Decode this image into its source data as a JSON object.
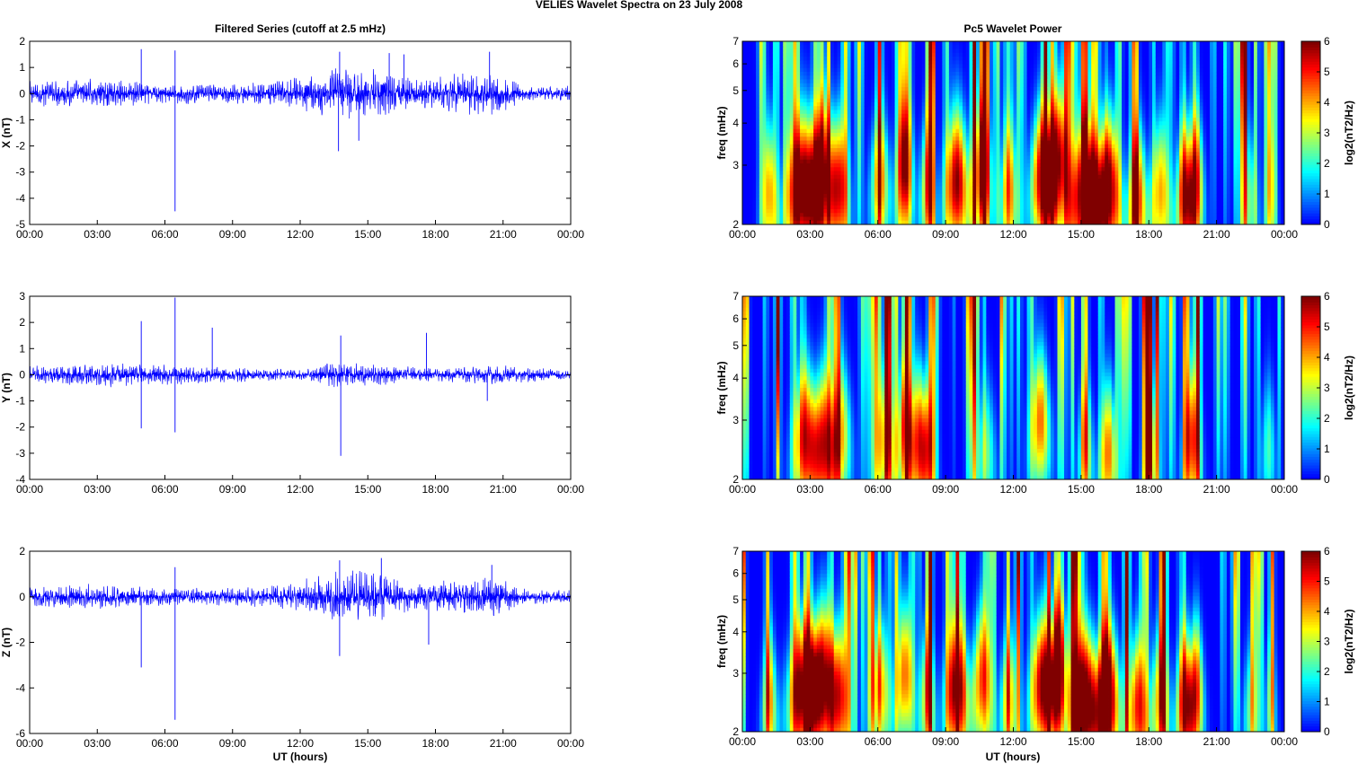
{
  "figure": {
    "title": "VELIES Wavelet Spectra on 23 July      2008",
    "left_title": "Filtered Series (cutoff at 2.5 mHz)",
    "right_title": "Pc5 Wavelet Power",
    "xlabel": "UT (hours)"
  },
  "colors": {
    "trace": "#0000ff",
    "axis": "#000000",
    "colormap": "jet",
    "background": "#00008f"
  },
  "chart_data": [
    {
      "type": "line",
      "title": "Filtered Series (cutoff at 2.5 mHz)",
      "ylabel": "X (nT)",
      "xlim": [
        0,
        24
      ],
      "ylim": [
        -5,
        2
      ],
      "x_ticks": [
        "00:00",
        "03:00",
        "06:00",
        "09:00",
        "12:00",
        "15:00",
        "18:00",
        "21:00",
        "00:00"
      ],
      "y_ticks": [
        -5,
        -4,
        -3,
        -2,
        -1,
        0,
        1,
        2
      ],
      "envelope": [
        {
          "t": 0,
          "amp": 0.5
        },
        {
          "t": 3,
          "amp": 0.6
        },
        {
          "t": 6,
          "amp": 0.4
        },
        {
          "t": 9,
          "amp": 0.4
        },
        {
          "t": 11,
          "amp": 0.5
        },
        {
          "t": 13.5,
          "amp": 1.0
        },
        {
          "t": 15.5,
          "amp": 1.0
        },
        {
          "t": 17,
          "amp": 0.6
        },
        {
          "t": 20.5,
          "amp": 0.9
        },
        {
          "t": 22,
          "amp": 0.3
        },
        {
          "t": 24,
          "amp": 0.3
        }
      ],
      "spikes": [
        {
          "t": 4.95,
          "v": 1.7
        },
        {
          "t": 6.45,
          "v": -4.5
        },
        {
          "t": 6.45,
          "v": 1.65
        },
        {
          "t": 13.7,
          "v": -2.2
        },
        {
          "t": 13.75,
          "v": 1.6
        },
        {
          "t": 15.95,
          "v": 1.55
        },
        {
          "t": 16.6,
          "v": 1.5
        },
        {
          "t": 20.4,
          "v": 1.6
        },
        {
          "t": 14.6,
          "v": -1.8
        }
      ]
    },
    {
      "type": "line",
      "ylabel": "Y (nT)",
      "xlim": [
        0,
        24
      ],
      "ylim": [
        -4,
        3
      ],
      "x_ticks": [
        "00:00",
        "03:00",
        "06:00",
        "09:00",
        "12:00",
        "15:00",
        "18:00",
        "21:00",
        "00:00"
      ],
      "y_ticks": [
        -4,
        -3,
        -2,
        -1,
        0,
        1,
        2,
        3
      ],
      "envelope": [
        {
          "t": 0,
          "amp": 0.35
        },
        {
          "t": 3,
          "amp": 0.5
        },
        {
          "t": 6,
          "amp": 0.4
        },
        {
          "t": 9,
          "amp": 0.3
        },
        {
          "t": 12,
          "amp": 0.2
        },
        {
          "t": 13.5,
          "amp": 0.5
        },
        {
          "t": 15.5,
          "amp": 0.4
        },
        {
          "t": 18,
          "amp": 0.25
        },
        {
          "t": 20.5,
          "amp": 0.4
        },
        {
          "t": 24,
          "amp": 0.2
        }
      ],
      "spikes": [
        {
          "t": 4.95,
          "v": 2.05
        },
        {
          "t": 4.95,
          "v": -2.05
        },
        {
          "t": 6.45,
          "v": 2.95
        },
        {
          "t": 6.45,
          "v": -2.2
        },
        {
          "t": 8.1,
          "v": 1.8
        },
        {
          "t": 13.8,
          "v": 1.5
        },
        {
          "t": 13.8,
          "v": -3.1
        },
        {
          "t": 17.6,
          "v": 1.6
        },
        {
          "t": 20.3,
          "v": -1.0
        }
      ]
    },
    {
      "type": "line",
      "ylabel": "Z (nT)",
      "xlabel": "UT (hours)",
      "xlim": [
        0,
        24
      ],
      "ylim": [
        -6,
        2
      ],
      "x_ticks": [
        "00:00",
        "03:00",
        "06:00",
        "09:00",
        "12:00",
        "15:00",
        "18:00",
        "21:00",
        "00:00"
      ],
      "y_ticks": [
        -6,
        -4,
        -2,
        0,
        2
      ],
      "envelope": [
        {
          "t": 0,
          "amp": 0.45
        },
        {
          "t": 3,
          "amp": 0.6
        },
        {
          "t": 6,
          "amp": 0.4
        },
        {
          "t": 9,
          "amp": 0.4
        },
        {
          "t": 11,
          "amp": 0.5
        },
        {
          "t": 13.7,
          "amp": 1.2
        },
        {
          "t": 15.5,
          "amp": 1.1
        },
        {
          "t": 17,
          "amp": 0.6
        },
        {
          "t": 20.5,
          "amp": 1.0
        },
        {
          "t": 22,
          "amp": 0.35
        },
        {
          "t": 24,
          "amp": 0.35
        }
      ],
      "spikes": [
        {
          "t": 4.95,
          "v": -3.1
        },
        {
          "t": 6.45,
          "v": -5.4
        },
        {
          "t": 6.45,
          "v": 1.3
        },
        {
          "t": 13.75,
          "v": -2.6
        },
        {
          "t": 13.75,
          "v": 1.6
        },
        {
          "t": 15.6,
          "v": 1.7
        },
        {
          "t": 17.7,
          "v": -2.1
        },
        {
          "t": 20.5,
          "v": 1.4
        }
      ]
    },
    {
      "type": "heatmap",
      "title": "Pc5 Wavelet Power",
      "ylabel": "freq (mHz)",
      "y_scale": "log",
      "xlim": [
        0,
        24
      ],
      "ylim": [
        2,
        7
      ],
      "x_ticks": [
        "00:00",
        "03:00",
        "06:00",
        "09:00",
        "12:00",
        "15:00",
        "18:00",
        "21:00",
        "00:00"
      ],
      "y_ticks": [
        2,
        3,
        4,
        5,
        6,
        7
      ],
      "colorbar": {
        "label": "log2(nT2/Hz)",
        "range": [
          0,
          6
        ],
        "ticks": [
          0,
          1,
          2,
          3,
          4,
          5,
          6
        ]
      },
      "blobs": [
        {
          "t": 2.7,
          "f": 2.6,
          "p": 6.5,
          "w": 0.7
        },
        {
          "t": 3.6,
          "f": 3.0,
          "p": 5.0,
          "w": 0.5
        },
        {
          "t": 1.2,
          "f": 2.5,
          "p": 4.0,
          "w": 0.3
        },
        {
          "t": 4.3,
          "f": 2.6,
          "p": 4.5,
          "w": 0.4
        },
        {
          "t": 6.1,
          "f": 2.7,
          "p": 4.0,
          "w": 0.4
        },
        {
          "t": 7.2,
          "f": 3.0,
          "p": 4.5,
          "w": 0.35
        },
        {
          "t": 8.2,
          "f": 2.6,
          "p": 4.0,
          "w": 0.3
        },
        {
          "t": 9.5,
          "f": 2.7,
          "p": 6.0,
          "w": 0.5
        },
        {
          "t": 10.6,
          "f": 2.9,
          "p": 4.5,
          "w": 0.4
        },
        {
          "t": 11.8,
          "f": 2.5,
          "p": 4.0,
          "w": 0.35
        },
        {
          "t": 13.3,
          "f": 2.8,
          "p": 6.0,
          "w": 0.5
        },
        {
          "t": 14.0,
          "f": 3.2,
          "p": 5.5,
          "w": 0.4
        },
        {
          "t": 15.2,
          "f": 2.5,
          "p": 6.5,
          "w": 0.6
        },
        {
          "t": 16.2,
          "f": 2.6,
          "p": 6.5,
          "w": 0.5
        },
        {
          "t": 17.5,
          "f": 2.4,
          "p": 5.0,
          "w": 0.4
        },
        {
          "t": 18.5,
          "f": 2.5,
          "p": 4.0,
          "w": 0.4
        },
        {
          "t": 19.6,
          "f": 2.5,
          "p": 5.5,
          "w": 0.35
        },
        {
          "t": 20.1,
          "f": 2.7,
          "p": 5.0,
          "w": 0.3
        },
        {
          "t": 22.5,
          "f": 2.3,
          "p": 2.5,
          "w": 0.3
        },
        {
          "t": 23.4,
          "f": 2.4,
          "p": 2.2,
          "w": 0.25
        }
      ]
    },
    {
      "type": "heatmap",
      "ylabel": "freq (mHz)",
      "y_scale": "log",
      "xlim": [
        0,
        24
      ],
      "ylim": [
        2,
        7
      ],
      "x_ticks": [
        "00:00",
        "03:00",
        "06:00",
        "09:00",
        "12:00",
        "15:00",
        "18:00",
        "21:00",
        "00:00"
      ],
      "y_ticks": [
        2,
        3,
        4,
        5,
        6,
        7
      ],
      "colorbar": {
        "label": "log2(nT2/Hz)",
        "range": [
          0,
          6
        ],
        "ticks": [
          0,
          1,
          2,
          3,
          4,
          5,
          6
        ]
      },
      "blobs": [
        {
          "t": 2.8,
          "f": 2.7,
          "p": 5.0,
          "w": 0.5
        },
        {
          "t": 3.6,
          "f": 2.6,
          "p": 5.0,
          "w": 0.5
        },
        {
          "t": 4.4,
          "f": 2.8,
          "p": 3.5,
          "w": 0.4
        },
        {
          "t": 6.3,
          "f": 2.6,
          "p": 3.5,
          "w": 0.4
        },
        {
          "t": 7.2,
          "f": 2.8,
          "p": 4.0,
          "w": 0.35
        },
        {
          "t": 7.8,
          "f": 2.7,
          "p": 4.5,
          "w": 0.3
        },
        {
          "t": 8.2,
          "f": 2.5,
          "p": 4.0,
          "w": 0.3
        },
        {
          "t": 13.2,
          "f": 3.0,
          "p": 4.5,
          "w": 0.4
        },
        {
          "t": 15.2,
          "f": 2.5,
          "p": 3.5,
          "w": 0.3
        },
        {
          "t": 16.2,
          "f": 2.4,
          "p": 4.5,
          "w": 0.35
        },
        {
          "t": 18.1,
          "f": 2.4,
          "p": 3.5,
          "w": 0.3
        },
        {
          "t": 19.9,
          "f": 2.6,
          "p": 4.5,
          "w": 0.35
        },
        {
          "t": 10.8,
          "f": 2.4,
          "p": 2.5,
          "w": 0.4
        },
        {
          "t": 23.3,
          "f": 2.5,
          "p": 2.2,
          "w": 0.3
        }
      ]
    },
    {
      "type": "heatmap",
      "ylabel": "freq (mHz)",
      "xlabel": "UT (hours)",
      "y_scale": "log",
      "xlim": [
        0,
        24
      ],
      "ylim": [
        2,
        7
      ],
      "x_ticks": [
        "00:00",
        "03:00",
        "06:00",
        "09:00",
        "12:00",
        "15:00",
        "18:00",
        "21:00",
        "00:00"
      ],
      "y_ticks": [
        2,
        3,
        4,
        5,
        6,
        7
      ],
      "colorbar": {
        "label": "log2(nT2/Hz)",
        "range": [
          0,
          6
        ],
        "ticks": [
          0,
          1,
          2,
          3,
          4,
          5,
          6
        ]
      },
      "blobs": [
        {
          "t": 2.8,
          "f": 2.7,
          "p": 6.5,
          "w": 0.7
        },
        {
          "t": 3.6,
          "f": 3.1,
          "p": 5.0,
          "w": 0.5
        },
        {
          "t": 1.2,
          "f": 2.5,
          "p": 4.0,
          "w": 0.3
        },
        {
          "t": 4.3,
          "f": 2.6,
          "p": 4.5,
          "w": 0.4
        },
        {
          "t": 6.1,
          "f": 2.7,
          "p": 4.0,
          "w": 0.4
        },
        {
          "t": 7.2,
          "f": 3.0,
          "p": 4.5,
          "w": 0.35
        },
        {
          "t": 8.2,
          "f": 2.6,
          "p": 4.0,
          "w": 0.3
        },
        {
          "t": 9.5,
          "f": 2.7,
          "p": 5.5,
          "w": 0.5
        },
        {
          "t": 10.6,
          "f": 2.9,
          "p": 4.5,
          "w": 0.4
        },
        {
          "t": 11.8,
          "f": 2.5,
          "p": 4.0,
          "w": 0.35
        },
        {
          "t": 13.3,
          "f": 2.8,
          "p": 6.0,
          "w": 0.5
        },
        {
          "t": 14.0,
          "f": 3.2,
          "p": 5.5,
          "w": 0.4
        },
        {
          "t": 15.2,
          "f": 2.5,
          "p": 6.5,
          "w": 0.6
        },
        {
          "t": 16.2,
          "f": 2.6,
          "p": 6.5,
          "w": 0.5
        },
        {
          "t": 17.5,
          "f": 2.4,
          "p": 5.0,
          "w": 0.4
        },
        {
          "t": 18.5,
          "f": 2.5,
          "p": 4.0,
          "w": 0.4
        },
        {
          "t": 19.6,
          "f": 2.5,
          "p": 5.5,
          "w": 0.35
        },
        {
          "t": 20.1,
          "f": 2.7,
          "p": 5.0,
          "w": 0.3
        },
        {
          "t": 22.5,
          "f": 2.3,
          "p": 2.5,
          "w": 0.3
        },
        {
          "t": 23.4,
          "f": 2.4,
          "p": 2.2,
          "w": 0.25
        }
      ]
    }
  ]
}
